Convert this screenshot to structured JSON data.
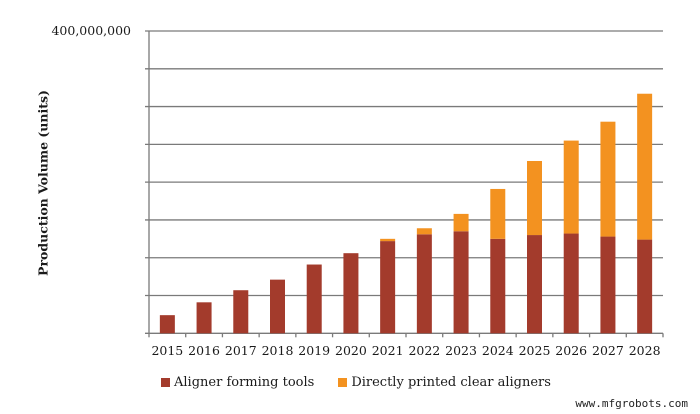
{
  "chart_data": {
    "type": "bar",
    "stacked": true,
    "title": "",
    "xlabel": "",
    "ylabel": "Production Volume (units)",
    "ylim": [
      0,
      400000000
    ],
    "y_gridline_step": 50000000,
    "y_tick_labels_shown": [
      "400,000,000"
    ],
    "grid": true,
    "legend_position": "bottom",
    "categories": [
      "2015",
      "2016",
      "2017",
      "2018",
      "2019",
      "2020",
      "2021",
      "2022",
      "2023",
      "2024",
      "2025",
      "2026",
      "2027",
      "2028"
    ],
    "series": [
      {
        "name": "Aligner forming tools",
        "color": "#A33B2C",
        "values": [
          24000000,
          41000000,
          57000000,
          71000000,
          91000000,
          106000000,
          122000000,
          131000000,
          135000000,
          125000000,
          130000000,
          132000000,
          128000000,
          124000000
        ]
      },
      {
        "name": "Directly printed clear aligners",
        "color": "#F39220",
        "values": [
          0,
          0,
          0,
          0,
          0,
          0,
          3000000,
          8000000,
          23000000,
          66000000,
          98000000,
          123000000,
          152000000,
          193000000
        ]
      }
    ]
  },
  "axis": {
    "y_top_label": "400,000,000",
    "y_title": "Production Volume (units)"
  },
  "legend": {
    "items": [
      {
        "label": "Aligner forming tools",
        "color": "#A33B2C"
      },
      {
        "label": "Directly printed clear aligners",
        "color": "#F39220"
      }
    ]
  },
  "watermark": "www.mfgrobots.com"
}
